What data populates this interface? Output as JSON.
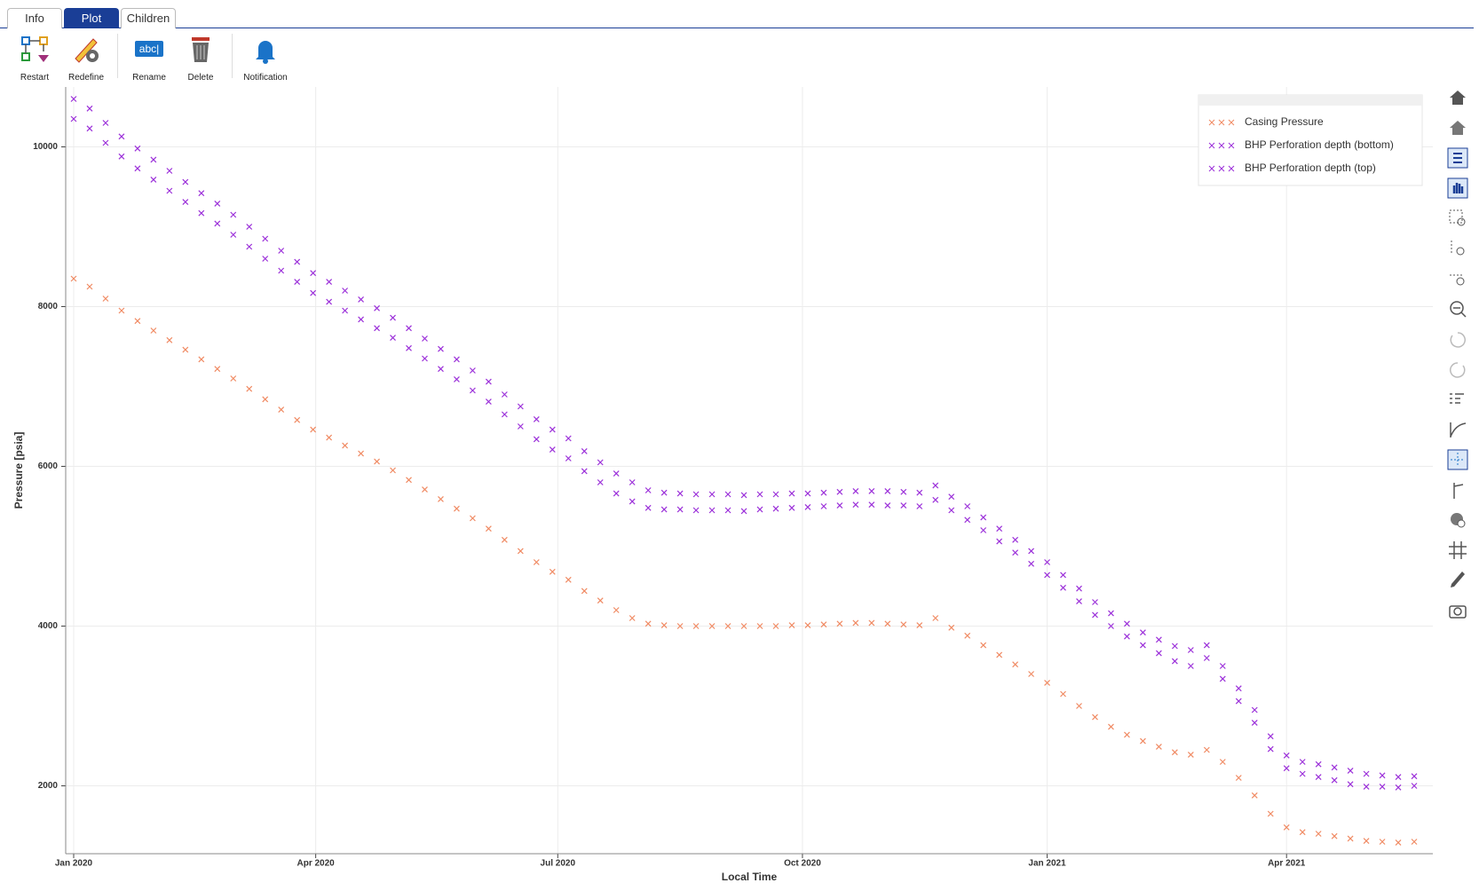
{
  "tabs": [
    "Info",
    "Plot",
    "Children"
  ],
  "toolbar": [
    "Restart",
    "Redefine",
    "Rename",
    "Delete",
    "Notification"
  ],
  "rename_icon_text": "abc|",
  "chart_data": {
    "type": "scatter",
    "x_label": "Local Time",
    "y_label": "Pressure [psia]",
    "grid": true,
    "legend": "top-right",
    "xlim": [
      -3,
      511
    ],
    "ylim": [
      1150,
      10750
    ],
    "xticks": [
      {
        "value": 0,
        "label": "Jan 2020"
      },
      {
        "value": 91,
        "label": "Apr 2020"
      },
      {
        "value": 182,
        "label": "Jul 2020"
      },
      {
        "value": 274,
        "label": "Oct 2020"
      },
      {
        "value": 366,
        "label": "Jan 2021"
      },
      {
        "value": 456,
        "label": "Apr 2021"
      }
    ],
    "yticks": [
      2000,
      4000,
      6000,
      8000,
      10000
    ],
    "x": [
      0,
      6,
      12,
      18,
      24,
      30,
      36,
      42,
      48,
      54,
      60,
      66,
      72,
      78,
      84,
      90,
      96,
      102,
      108,
      114,
      120,
      126,
      132,
      138,
      144,
      150,
      156,
      162,
      168,
      174,
      180,
      186,
      192,
      198,
      204,
      210,
      216,
      222,
      228,
      234,
      240,
      246,
      252,
      258,
      264,
      270,
      276,
      282,
      288,
      294,
      300,
      306,
      312,
      318,
      324,
      330,
      336,
      342,
      348,
      354,
      360,
      366,
      372,
      378,
      384,
      390,
      396,
      402,
      408,
      414,
      420,
      426,
      432,
      438,
      444,
      450,
      456,
      462,
      468,
      474,
      480,
      486,
      492,
      498,
      504
    ],
    "series": [
      {
        "name": "Casing Pressure",
        "color": "#f08a63",
        "values": [
          8350,
          8250,
          8100,
          7950,
          7820,
          7700,
          7580,
          7460,
          7340,
          7220,
          7100,
          6970,
          6840,
          6710,
          6580,
          6460,
          6360,
          6260,
          6160,
          6060,
          5950,
          5830,
          5710,
          5590,
          5470,
          5350,
          5220,
          5080,
          4940,
          4800,
          4680,
          4580,
          4440,
          4320,
          4200,
          4100,
          4030,
          4010,
          4000,
          4000,
          4000,
          4000,
          4000,
          4000,
          4000,
          4010,
          4010,
          4020,
          4030,
          4040,
          4040,
          4030,
          4020,
          4010,
          4100,
          3980,
          3880,
          3760,
          3640,
          3520,
          3400,
          3290,
          3150,
          3000,
          2860,
          2740,
          2640,
          2560,
          2490,
          2420,
          2390,
          2450,
          2300,
          2100,
          1880,
          1650,
          1480,
          1420,
          1400,
          1370,
          1340,
          1310,
          1300,
          1290,
          1300
        ]
      },
      {
        "name": "BHP Perforation depth (bottom)",
        "color": "#9b30d9",
        "values": [
          10600,
          10480,
          10300,
          10130,
          9980,
          9840,
          9700,
          9560,
          9420,
          9290,
          9150,
          9000,
          8850,
          8700,
          8560,
          8420,
          8310,
          8200,
          8090,
          7980,
          7860,
          7730,
          7600,
          7470,
          7340,
          7200,
          7060,
          6900,
          6750,
          6590,
          6460,
          6350,
          6190,
          6050,
          5910,
          5800,
          5700,
          5670,
          5660,
          5650,
          5650,
          5650,
          5640,
          5650,
          5650,
          5660,
          5660,
          5670,
          5680,
          5690,
          5690,
          5690,
          5680,
          5670,
          5760,
          5620,
          5500,
          5360,
          5220,
          5080,
          4940,
          4800,
          4640,
          4470,
          4300,
          4160,
          4030,
          3920,
          3830,
          3750,
          3700,
          3760,
          3500,
          3220,
          2950,
          2620,
          2380,
          2300,
          2270,
          2230,
          2190,
          2150,
          2130,
          2110,
          2120
        ]
      },
      {
        "name": "BHP Perforation depth (top)",
        "color": "#9b30d9",
        "values": [
          10350,
          10230,
          10050,
          9880,
          9730,
          9590,
          9450,
          9310,
          9170,
          9040,
          8900,
          8750,
          8600,
          8450,
          8310,
          8170,
          8060,
          7950,
          7840,
          7730,
          7610,
          7480,
          7350,
          7220,
          7090,
          6950,
          6810,
          6650,
          6500,
          6340,
          6210,
          6100,
          5940,
          5800,
          5660,
          5560,
          5480,
          5460,
          5460,
          5450,
          5450,
          5450,
          5440,
          5460,
          5470,
          5480,
          5490,
          5500,
          5510,
          5520,
          5520,
          5510,
          5510,
          5500,
          5580,
          5450,
          5330,
          5200,
          5060,
          4920,
          4780,
          4640,
          4480,
          4310,
          4140,
          4000,
          3870,
          3760,
          3660,
          3560,
          3500,
          3600,
          3340,
          3060,
          2790,
          2460,
          2220,
          2150,
          2110,
          2070,
          2020,
          1990,
          1990,
          1980,
          2000
        ]
      }
    ]
  }
}
